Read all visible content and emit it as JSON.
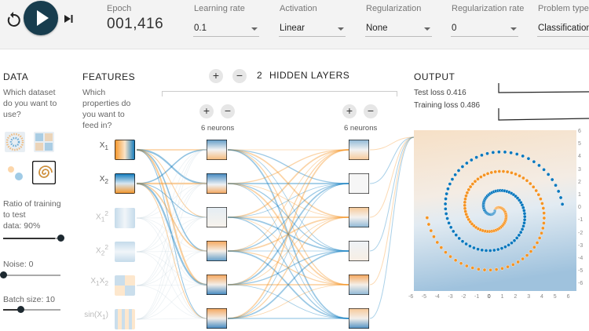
{
  "controls": {
    "epoch_label": "Epoch",
    "epoch_value": "001,416",
    "learning_rate_label": "Learning rate",
    "learning_rate_value": "0.1",
    "activation_label": "Activation",
    "activation_value": "Linear",
    "regularization_label": "Regularization",
    "regularization_value": "None",
    "reg_rate_label": "Regularization rate",
    "reg_rate_value": "0",
    "problem_type_label": "Problem type",
    "problem_type_value": "Classification"
  },
  "data_panel": {
    "title": "DATA",
    "question": [
      "Which dataset",
      "do you want to",
      "use?"
    ],
    "datasets": [
      "circle-dataset",
      "xor-dataset",
      "gauss-dataset",
      "spiral-dataset"
    ],
    "selected_dataset": "spiral-dataset",
    "ratio_label": [
      "Ratio of training",
      "to test",
      "data:  90%"
    ],
    "ratio_value": 0.9,
    "noise_label": "Noise:  0",
    "noise_value": 0,
    "batch_label": "Batch size:  10",
    "batch_value": 0.3
  },
  "features_panel": {
    "title": "FEATURES",
    "question": [
      "Which",
      "properties do",
      "you want to",
      "feed in?"
    ],
    "features": [
      {
        "base": "X",
        "sub": "1",
        "sup": "",
        "active": true
      },
      {
        "base": "X",
        "sub": "2",
        "sup": "",
        "active": true
      },
      {
        "base": "X",
        "sub": "1",
        "sup": "2",
        "active": false
      },
      {
        "base": "X",
        "sub": "2",
        "sup": "2",
        "active": false
      },
      {
        "base": "X",
        "sub": "1",
        "mid": "X",
        "sub2": "2",
        "active": false
      },
      {
        "base": "sin(X",
        "sub": "1",
        "tail": ")",
        "active": false
      }
    ]
  },
  "network": {
    "add_layer_symbol": "+",
    "remove_layer_symbol": "−",
    "layers_count": "2",
    "layers_label": "HIDDEN LAYERS",
    "layers": [
      {
        "neurons_label": "6 neurons"
      },
      {
        "neurons_label": "6 neurons"
      }
    ]
  },
  "output": {
    "title": "OUTPUT",
    "test_loss": "Test loss 0.416",
    "training_loss": "Training loss 0.486",
    "y_ticks": [
      "6",
      "5",
      "4",
      "3",
      "2",
      "1",
      "0",
      "-1",
      "-2",
      "-3",
      "-4",
      "-5",
      "-6"
    ],
    "x_ticks": [
      "-6",
      "-5",
      "-4",
      "-3",
      "-2",
      "-1",
      "0",
      "1",
      "2",
      "3",
      "4",
      "5",
      "6"
    ]
  },
  "colors": {
    "orange": "#f59322",
    "blue": "#0877bd",
    "dark": "#183d4e"
  }
}
